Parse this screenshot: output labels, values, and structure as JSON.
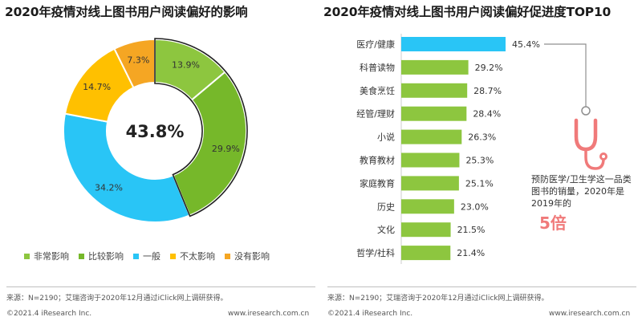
{
  "left": {
    "title": "2020年疫情对线上图书用户阅读偏好的影响",
    "center_value": "43.8%",
    "legend": [
      {
        "label": "非常影响",
        "color": "#8dc63f"
      },
      {
        "label": "比较影响",
        "color": "#76b82a"
      },
      {
        "label": "一般",
        "color": "#29c5f6"
      },
      {
        "label": "不太影响",
        "color": "#ffc000"
      },
      {
        "label": "没有影响",
        "color": "#f5a623"
      }
    ],
    "source": "来源：N=2190；艾瑞咨询于2020年12月通过iClick网上调研获得。",
    "copyright": "©2021.4 iResearch Inc.",
    "website": "www.iresearch.com.cn"
  },
  "right": {
    "title": "2020年疫情对线上图书用户阅读偏好促进度TOP10",
    "callout": "预防医学/卫生学这一品类图书的销量，2020年是2019年的",
    "callout_big": "5倍",
    "source": "来源：N=2190；艾瑞咨询于2020年12月通过iClick网上调研获得。",
    "copyright": "©2021.4 iResearch Inc.",
    "website": "www.iresearch.com.cn"
  },
  "chart_data": [
    {
      "type": "pie",
      "title": "2020年疫情对线上图书用户阅读偏好的影响",
      "categories": [
        "非常影响",
        "比较影响",
        "一般",
        "不太影响",
        "没有影响"
      ],
      "values": [
        13.9,
        29.9,
        34.2,
        14.7,
        7.3
      ],
      "labels": [
        "13.9%",
        "29.9%",
        "34.2%",
        "14.7%",
        "7.3%"
      ],
      "colors": [
        "#8dc63f",
        "#76b82a",
        "#29c5f6",
        "#ffc000",
        "#f5a623"
      ],
      "center_label": "43.8%",
      "legend_position": "bottom"
    },
    {
      "type": "bar",
      "orientation": "horizontal",
      "title": "2020年疫情对线上图书用户阅读偏好促进度TOP10",
      "categories": [
        "医疗/健康",
        "科普读物",
        "美食烹饪",
        "经管/理财",
        "小说",
        "教育教材",
        "家庭教育",
        "历史",
        "文化",
        "哲学/社科"
      ],
      "values": [
        45.4,
        29.2,
        28.7,
        28.4,
        26.3,
        25.3,
        25.1,
        23.0,
        21.5,
        21.4
      ],
      "labels": [
        "45.4%",
        "29.2%",
        "28.7%",
        "28.4%",
        "26.3%",
        "25.3%",
        "25.1%",
        "23.0%",
        "21.5%",
        "21.4%"
      ],
      "colors": {
        "highlight": "#29c5f6",
        "default": "#8dc63f"
      }
    }
  ]
}
